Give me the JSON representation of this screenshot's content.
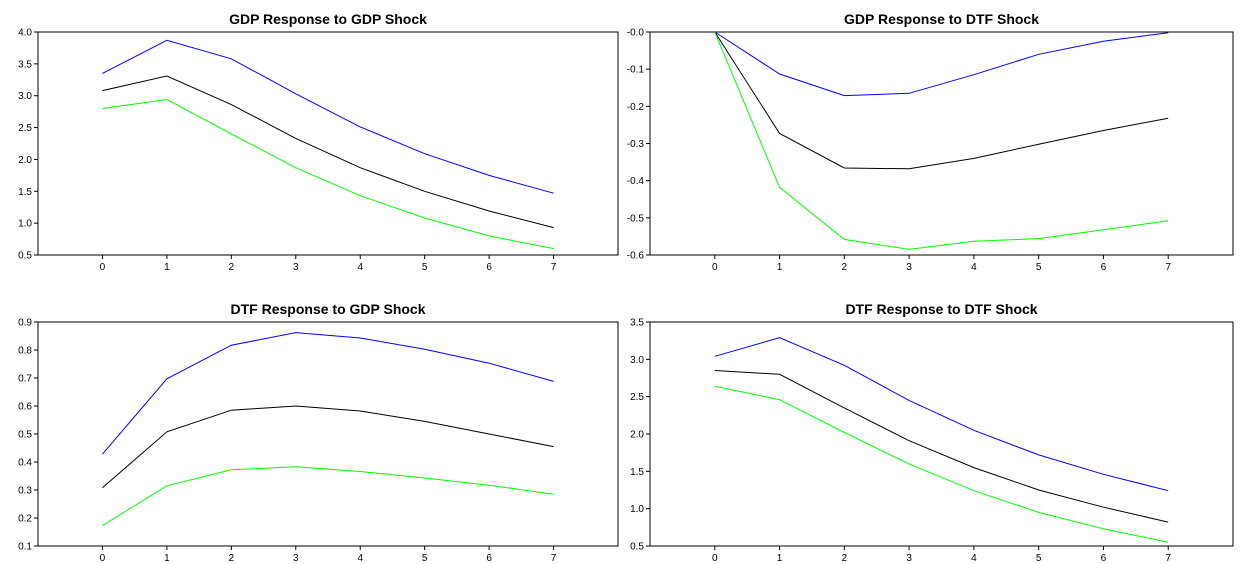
{
  "chart_data": [
    {
      "type": "line",
      "title": "GDP Response to GDP Shock",
      "x": [
        0,
        1,
        2,
        3,
        4,
        5,
        6,
        7
      ],
      "xticks": [
        "0",
        "1",
        "2",
        "3",
        "4",
        "5",
        "6",
        "7"
      ],
      "xlim": [
        -1,
        8
      ],
      "ylim": [
        0.5,
        4.0
      ],
      "yticks": [
        "0.5",
        "1.0",
        "1.5",
        "2.0",
        "2.5",
        "3.0",
        "3.5",
        "4.0"
      ],
      "series": [
        {
          "color": "#0000ff",
          "values": [
            3.35,
            3.87,
            3.58,
            3.03,
            2.51,
            2.09,
            1.75,
            1.47
          ]
        },
        {
          "color": "#000000",
          "values": [
            3.08,
            3.31,
            2.86,
            2.33,
            1.87,
            1.5,
            1.19,
            0.93
          ]
        },
        {
          "color": "#00ff00",
          "values": [
            2.8,
            2.94,
            2.4,
            1.87,
            1.43,
            1.08,
            0.8,
            0.6
          ]
        }
      ]
    },
    {
      "type": "line",
      "title": "GDP Response to DTF Shock",
      "x": [
        0,
        1,
        2,
        3,
        4,
        5,
        6,
        7
      ],
      "xticks": [
        "0",
        "1",
        "2",
        "3",
        "4",
        "5",
        "6",
        "7"
      ],
      "xlim": [
        -1,
        8
      ],
      "ylim": [
        -0.6,
        0.0
      ],
      "yticks": [
        "-0.6",
        "-0.5",
        "-0.4",
        "-0.3",
        "-0.2",
        "-0.1",
        "-0.0"
      ],
      "series": [
        {
          "color": "#0000ff",
          "values": [
            0.0,
            -0.113,
            -0.171,
            -0.165,
            -0.115,
            -0.06,
            -0.025,
            -0.002
          ]
        },
        {
          "color": "#000000",
          "values": [
            0.0,
            -0.273,
            -0.366,
            -0.368,
            -0.34,
            -0.302,
            -0.265,
            -0.232
          ]
        },
        {
          "color": "#00ff00",
          "values": [
            0.0,
            -0.418,
            -0.558,
            -0.585,
            -0.563,
            -0.556,
            -0.532,
            -0.508
          ]
        }
      ]
    },
    {
      "type": "line",
      "title": "DTF Response to GDP Shock",
      "x": [
        0,
        1,
        2,
        3,
        4,
        5,
        6,
        7
      ],
      "xticks": [
        "0",
        "1",
        "2",
        "3",
        "4",
        "5",
        "6",
        "7"
      ],
      "xlim": [
        -1,
        8
      ],
      "ylim": [
        0.1,
        0.9
      ],
      "yticks": [
        "0.1",
        "0.2",
        "0.3",
        "0.4",
        "0.5",
        "0.6",
        "0.7",
        "0.8",
        "0.9"
      ],
      "series": [
        {
          "color": "#0000ff",
          "values": [
            0.428,
            0.697,
            0.817,
            0.862,
            0.843,
            0.803,
            0.753,
            0.688
          ]
        },
        {
          "color": "#000000",
          "values": [
            0.308,
            0.508,
            0.585,
            0.6,
            0.582,
            0.545,
            0.5,
            0.455
          ]
        },
        {
          "color": "#00ff00",
          "values": [
            0.173,
            0.315,
            0.372,
            0.383,
            0.366,
            0.343,
            0.317,
            0.285
          ]
        }
      ]
    },
    {
      "type": "line",
      "title": "DTF Response to DTF Shock",
      "x": [
        0,
        1,
        2,
        3,
        4,
        5,
        6,
        7
      ],
      "xticks": [
        "0",
        "1",
        "2",
        "3",
        "4",
        "5",
        "6",
        "7"
      ],
      "xlim": [
        -1,
        8
      ],
      "ylim": [
        0.5,
        3.5
      ],
      "yticks": [
        "0.5",
        "1.0",
        "1.5",
        "2.0",
        "2.5",
        "3.0",
        "3.5"
      ],
      "series": [
        {
          "color": "#0000ff",
          "values": [
            3.04,
            3.29,
            2.92,
            2.45,
            2.05,
            1.72,
            1.46,
            1.24
          ]
        },
        {
          "color": "#000000",
          "values": [
            2.85,
            2.8,
            2.35,
            1.91,
            1.55,
            1.25,
            1.02,
            0.82
          ]
        },
        {
          "color": "#00ff00",
          "values": [
            2.64,
            2.46,
            2.02,
            1.6,
            1.24,
            0.95,
            0.73,
            0.55
          ]
        }
      ]
    }
  ]
}
